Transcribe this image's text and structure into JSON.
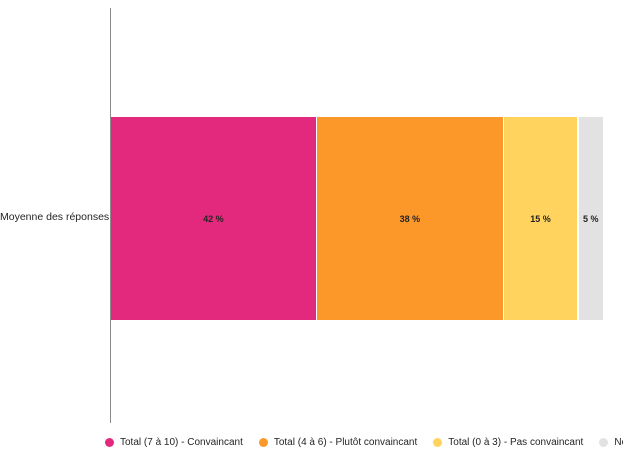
{
  "chart_data": {
    "type": "bar",
    "subtype": "horizontal-stacked-100",
    "title": "",
    "xlabel": "",
    "ylabel": "",
    "xlim": [
      0,
      100
    ],
    "grid": false,
    "legend_position": "bottom",
    "categories": [
      "Moyenne des réponses"
    ],
    "series": [
      {
        "name": "Total (7 à 10) - Convaincant",
        "values": [
          42
        ],
        "data_label": "42 %",
        "color": "#e3297d"
      },
      {
        "name": "Total (4 à 6) - Plutôt convaincant",
        "values": [
          38
        ],
        "data_label": "38 %",
        "color": "#fc9829"
      },
      {
        "name": "Total (0 à 3) - Pas convaincant",
        "values": [
          15
        ],
        "data_label": "15 %",
        "color": "#ffd35d"
      },
      {
        "name": "Ne sait pas",
        "values": [
          5
        ],
        "data_label": "5 %",
        "color": "#e2e2e2"
      }
    ],
    "axis_line_color": "#8c8c8c",
    "label_text_color": "#252423"
  }
}
